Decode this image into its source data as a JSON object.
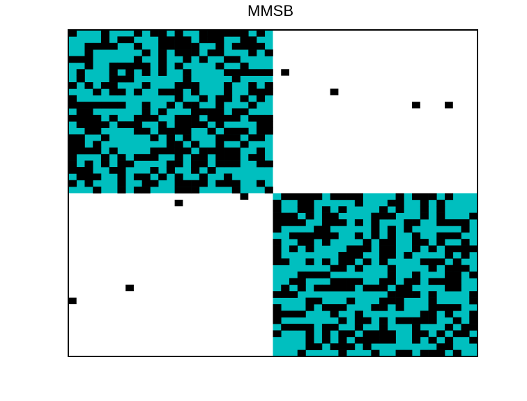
{
  "chart_data": {
    "type": "heatmap",
    "title": "MMSB",
    "xlabel": "",
    "ylabel": "",
    "grid": false,
    "size": [
      50,
      50
    ],
    "colors": {
      "background": "#ffffff",
      "block_fill": "#00bfbf",
      "edge": "#000000",
      "frame": "#000000"
    },
    "blocks": [
      {
        "name": "",
        "rows": [
          0,
          24
        ],
        "cols": [
          0,
          24
        ]
      },
      {
        "name": "",
        "rows": [
          25,
          49
        ],
        "cols": [
          25,
          49
        ]
      }
    ],
    "offblock_edges": [
      [
        6,
        26
      ],
      [
        9,
        32
      ],
      [
        11,
        42
      ],
      [
        11,
        46
      ],
      [
        25,
        21
      ],
      [
        26,
        13
      ],
      [
        39,
        7
      ],
      [
        41,
        0
      ]
    ]
  }
}
